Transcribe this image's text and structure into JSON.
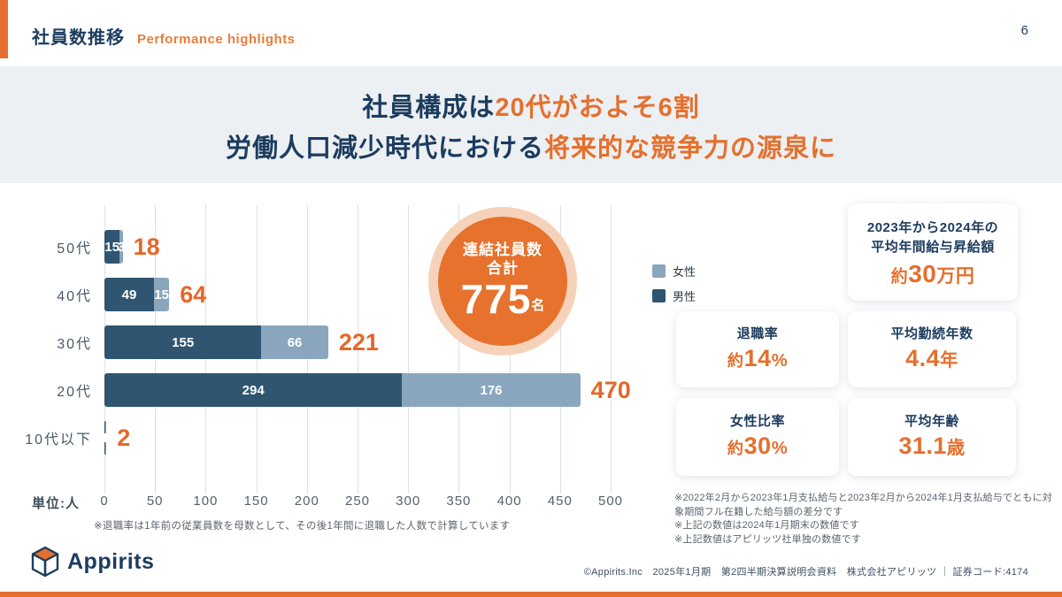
{
  "page": {
    "number": "6"
  },
  "header": {
    "title_ja": "社員数推移",
    "subtitle_en": "Performance highlights"
  },
  "banner": {
    "line1_dark": "社員構成は",
    "line1_orange": "20代がおよそ6割",
    "line2_dark": "労働人口減少時代における",
    "line2_orange": "将来的な競争力の源泉に"
  },
  "colors": {
    "accent_orange": "#E4702E",
    "navy": "#1C3C5E",
    "bar_male": "#2F5571",
    "bar_female": "#8AA6BF",
    "banner_bg": "#ECF0F3",
    "badge_ring": "#F6D2BA",
    "badge_fill": "#E7722D"
  },
  "chart_data": {
    "type": "bar",
    "orientation": "horizontal",
    "stacked": true,
    "unit_label": "単位:人",
    "categories": [
      "50代",
      "40代",
      "30代",
      "20代",
      "10代以下"
    ],
    "series": [
      {
        "name": "男性",
        "values": [
          15,
          49,
          155,
          294,
          1
        ]
      },
      {
        "name": "女性",
        "values": [
          3,
          15,
          66,
          176,
          1
        ]
      }
    ],
    "totals": [
      18,
      64,
      221,
      470,
      2
    ],
    "xlim": [
      0,
      500
    ],
    "ticks": [
      0,
      50,
      100,
      150,
      200,
      250,
      300,
      350,
      400,
      450,
      500
    ],
    "grid": true,
    "legend_position": "right",
    "legend": [
      {
        "label": "女性",
        "color": "#8AA6BF"
      },
      {
        "label": "男性",
        "color": "#2F5571"
      }
    ],
    "note": "※退職率は1年前の従業員数を母数として、その後1年間に退職した人数で計算しています"
  },
  "total_badge": {
    "line1": "連結社員数",
    "line2": "合計",
    "value": "775",
    "unit": "名"
  },
  "stats": {
    "salary_card": {
      "title_line1": "2023年から2024年の",
      "title_line2": "平均年間給与昇給額",
      "value_prefix": "約",
      "value_main": "30",
      "value_suffix": "万円"
    },
    "cards": [
      {
        "title": "退職率",
        "value_prefix": "約",
        "value_main": "14",
        "value_suffix": "%"
      },
      {
        "title": "平均勤続年数",
        "value_prefix": "",
        "value_main": "4.4",
        "value_suffix": "年"
      },
      {
        "title": "女性比率",
        "value_prefix": "約",
        "value_main": "30",
        "value_suffix": "%"
      },
      {
        "title": "平均年齢",
        "value_prefix": "",
        "value_main": "31.1",
        "value_suffix": "歳"
      }
    ],
    "notes": [
      "※2022年2月から2023年1月支払給与と2023年2月から2024年1月支払給与でともに対象期間フル在籍した給与額の差分です",
      "※上記の数値は2024年1月期末の数値です",
      "※上記数値はアピリッツ社単独の数値です"
    ]
  },
  "footer": {
    "logo_text": "Appirits",
    "credit": "©Appirits.Inc　2025年1月期　第2四半期決算説明会資料　株式会社アピリッツ ｜ 証券コード:4174"
  }
}
